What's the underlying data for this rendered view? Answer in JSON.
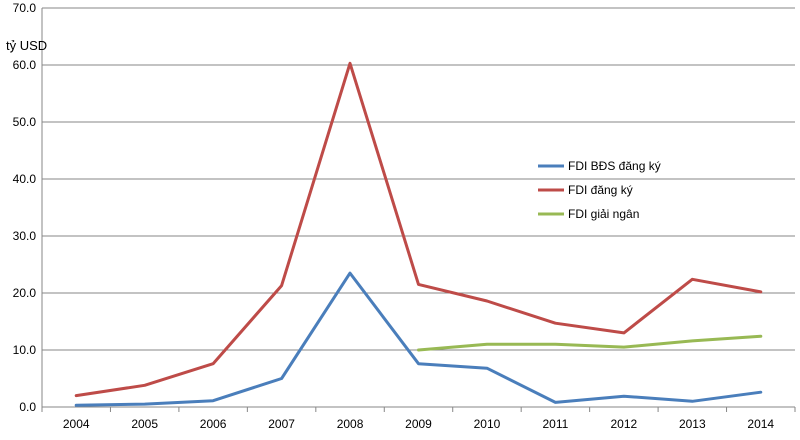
{
  "chart_data": {
    "type": "line",
    "unit_label": "tỷ USD",
    "categories": [
      "2004",
      "2005",
      "2006",
      "2007",
      "2008",
      "2009",
      "2010",
      "2011",
      "2012",
      "2013",
      "2014"
    ],
    "ylim": [
      0,
      70
    ],
    "yticks": [
      "0.0",
      "10.0",
      "20.0",
      "30.0",
      "40.0",
      "50.0",
      "60.0",
      "70.0"
    ],
    "grid": "horizontal",
    "legend_position": "right-middle",
    "series": [
      {
        "name": "FDI BĐS đăng ký",
        "color": "#4a7ebb",
        "values": [
          0.3,
          0.5,
          1.1,
          5.0,
          23.5,
          7.6,
          6.8,
          0.8,
          1.9,
          1.0,
          2.6
        ]
      },
      {
        "name": "FDI đăng ký",
        "color": "#be4b48",
        "values": [
          2.0,
          3.8,
          7.6,
          21.3,
          60.3,
          21.5,
          18.6,
          14.7,
          13.0,
          22.4,
          20.2
        ]
      },
      {
        "name": "FDI giải ngân",
        "color": "#98b954",
        "values": [
          null,
          null,
          null,
          null,
          null,
          10.0,
          11.0,
          11.0,
          10.5,
          11.6,
          12.4
        ]
      }
    ]
  }
}
